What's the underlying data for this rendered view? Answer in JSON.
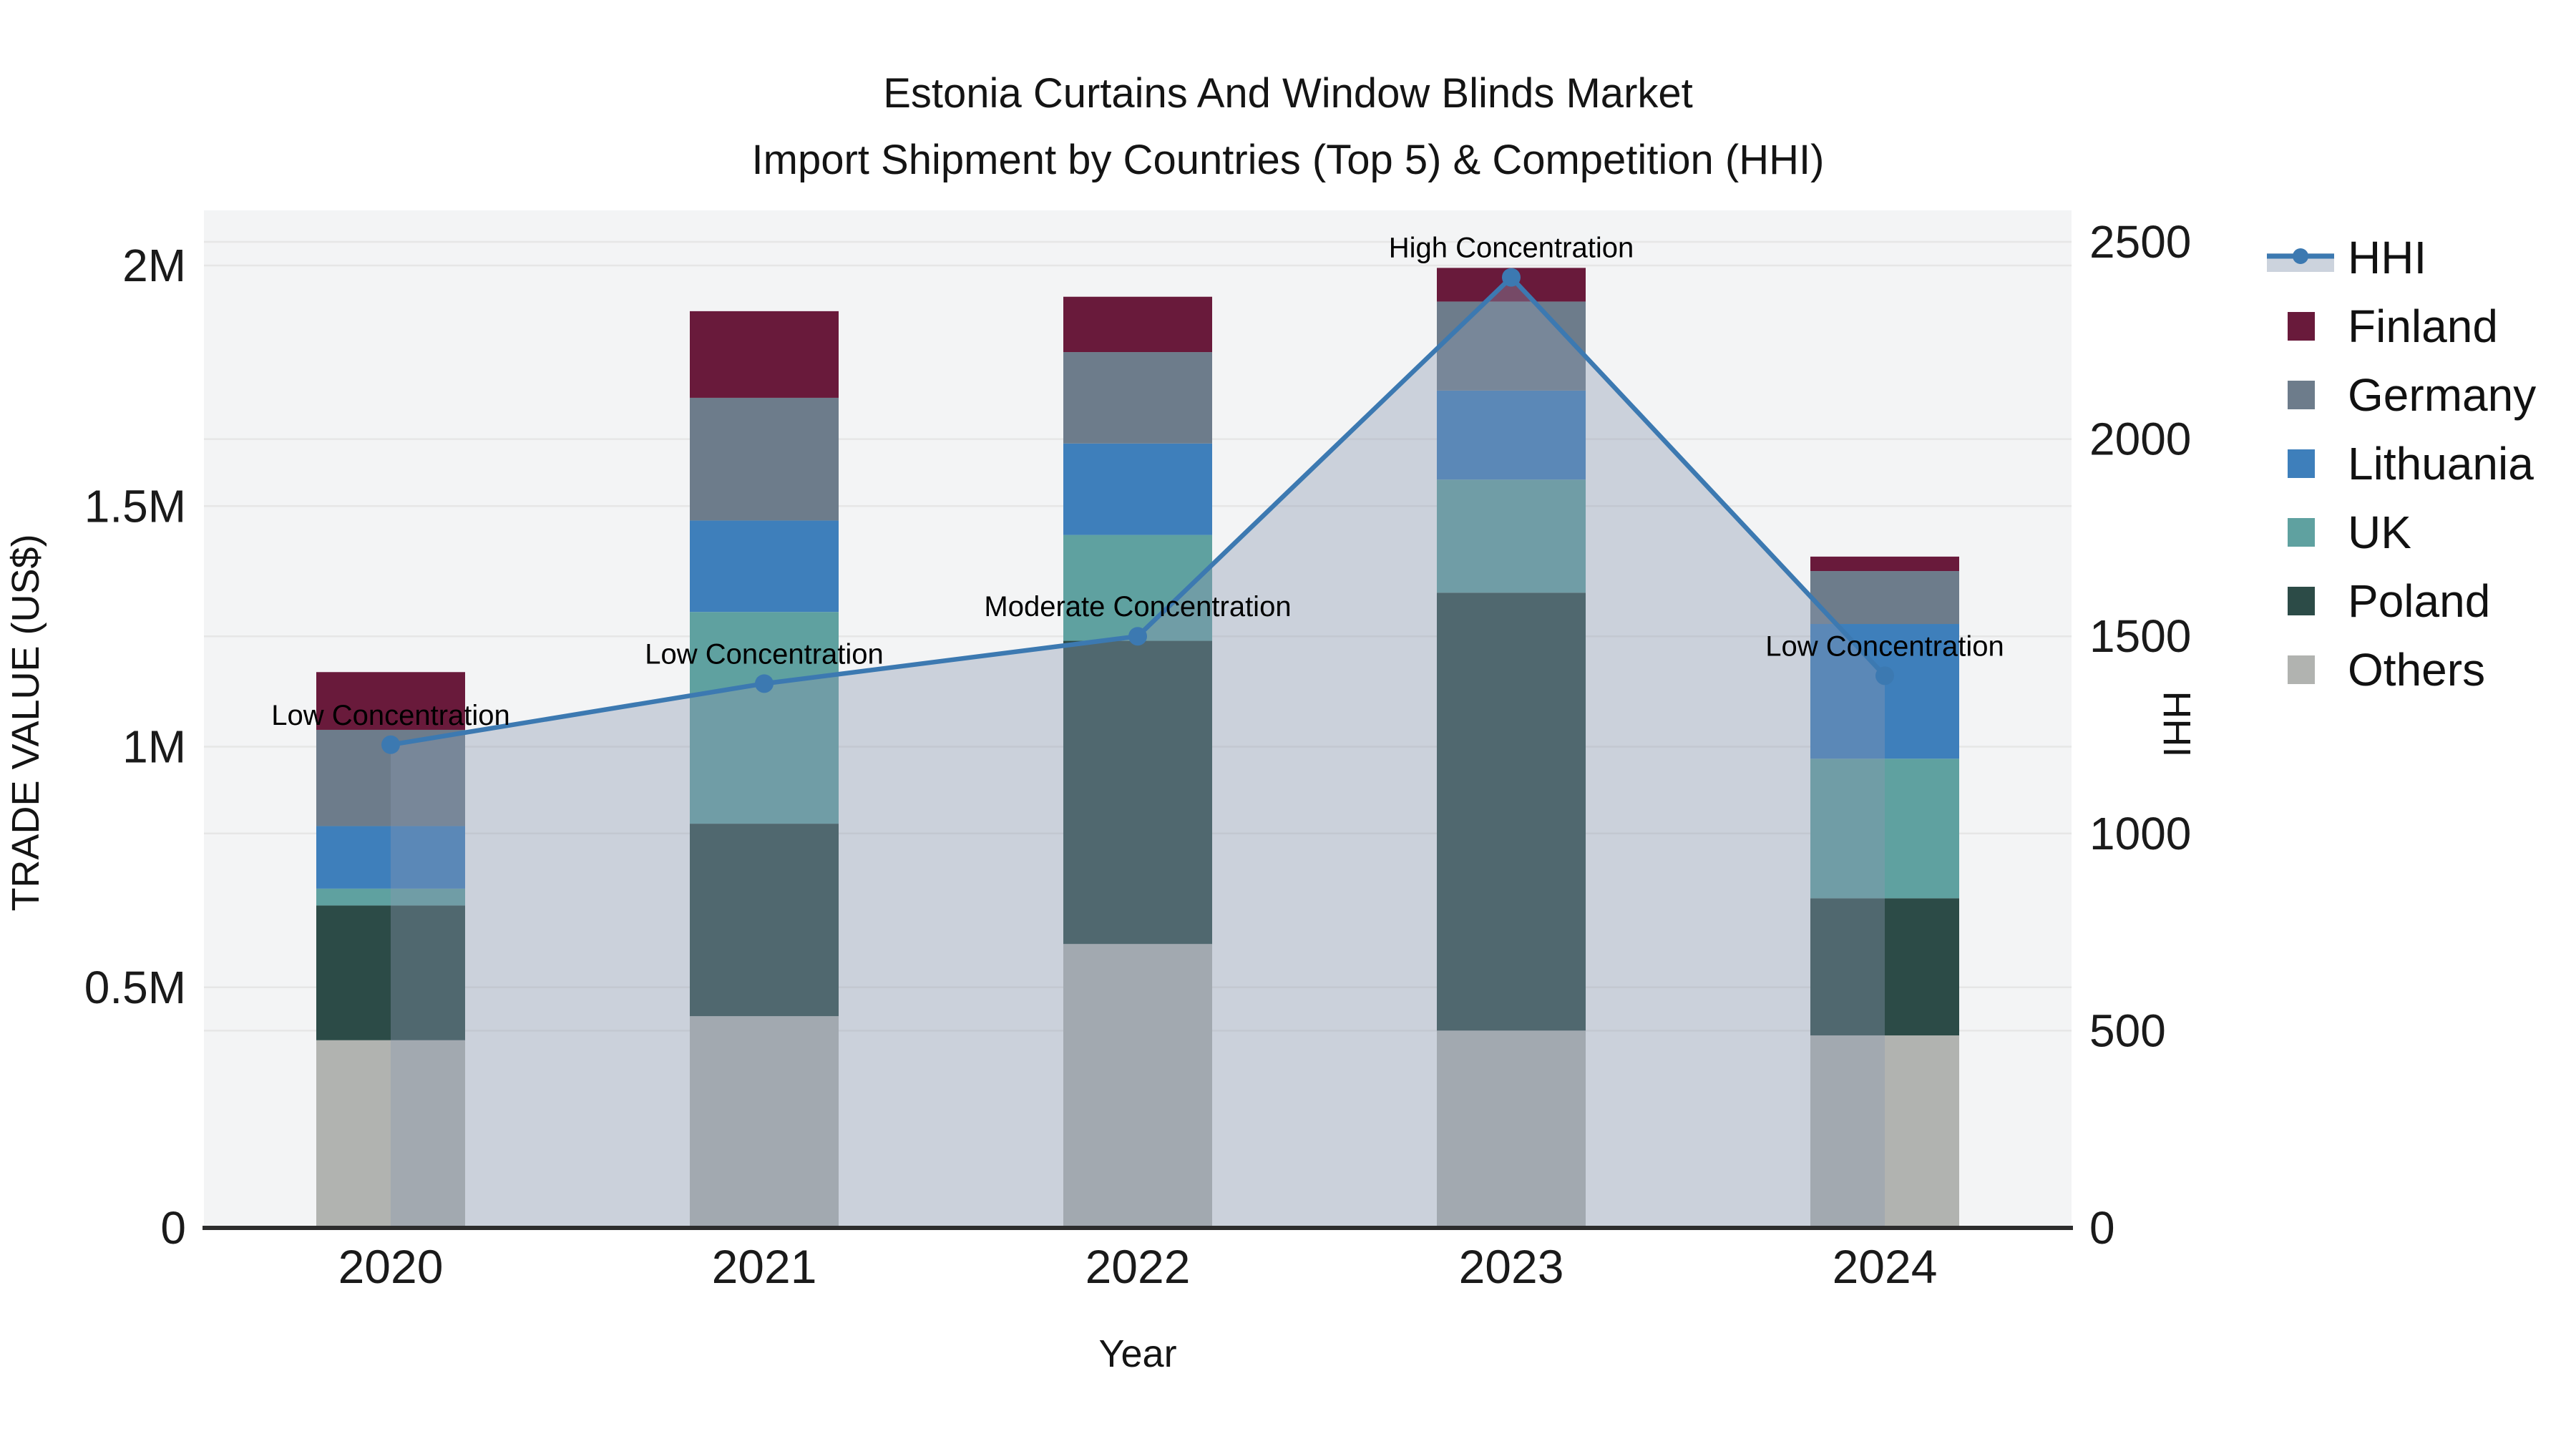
{
  "title": {
    "line1": "Estonia Curtains And Window Blinds Market",
    "line2": "Import Shipment by Countries (Top 5) & Competition (HHI)"
  },
  "chart_data": {
    "type": "stacked-bar+line",
    "categories": [
      "2020",
      "2021",
      "2022",
      "2023",
      "2024"
    ],
    "x_label": "Year",
    "y_left": {
      "title": "TRADE VALUE (US$)",
      "ticks": [
        {
          "label": "0",
          "value": 0
        },
        {
          "label": "0.5M",
          "value": 500000
        },
        {
          "label": "1M",
          "value": 1000000
        },
        {
          "label": "1.5M",
          "value": 1500000
        },
        {
          "label": "2M",
          "value": 2000000
        }
      ],
      "range": [
        0,
        2114000
      ]
    },
    "y_right": {
      "title": "HHI",
      "ticks": [
        {
          "label": "0",
          "value": 0
        },
        {
          "label": "500",
          "value": 500
        },
        {
          "label": "1000",
          "value": 1000
        },
        {
          "label": "1500",
          "value": 1500
        },
        {
          "label": "2000",
          "value": 2000
        },
        {
          "label": "2500",
          "value": 2500
        }
      ],
      "range": [
        0,
        2580
      ]
    },
    "series": [
      {
        "name": "Finland",
        "color": "#691a3b",
        "values": [
          120000,
          180000,
          115000,
          70000,
          30000
        ]
      },
      {
        "name": "Germany",
        "color": "#6d7c8b",
        "values": [
          200000,
          255000,
          190000,
          185000,
          110000
        ]
      },
      {
        "name": "Lithuania",
        "color": "#3e7fbb",
        "values": [
          130000,
          190000,
          190000,
          185000,
          280000
        ]
      },
      {
        "name": "UK",
        "color": "#5fa1a0",
        "values": [
          35000,
          440000,
          220000,
          235000,
          290000
        ]
      },
      {
        "name": "Poland",
        "color": "#2c4b47",
        "values": [
          280000,
          400000,
          630000,
          910000,
          285000
        ]
      },
      {
        "name": "Others",
        "color": "#b1b3b0",
        "values": [
          390000,
          440000,
          590000,
          410000,
          400000
        ]
      }
    ],
    "stack_bottom_to_top": [
      "Others",
      "Poland",
      "UK",
      "Lithuania",
      "Germany",
      "Finland"
    ],
    "hhi": {
      "name": "HHI",
      "values": [
        1225,
        1380,
        1500,
        2410,
        1400
      ],
      "annotations": [
        "Low Concentration",
        "Low Concentration",
        "Moderate Concentration",
        "High Concentration",
        "Low Concentration"
      ],
      "line_color": "#3c79b1",
      "area_fill": "rgba(139,152,175,0.38)",
      "legend_band_color": "#ccd3dd"
    },
    "legend_position": "right",
    "plot_background": "#f3f4f5",
    "gridline_color": "#e6e6e6",
    "axis_line_color": "#2d2d2d",
    "annotation_color": "#000000",
    "tick_color": "#1a1a1a"
  }
}
